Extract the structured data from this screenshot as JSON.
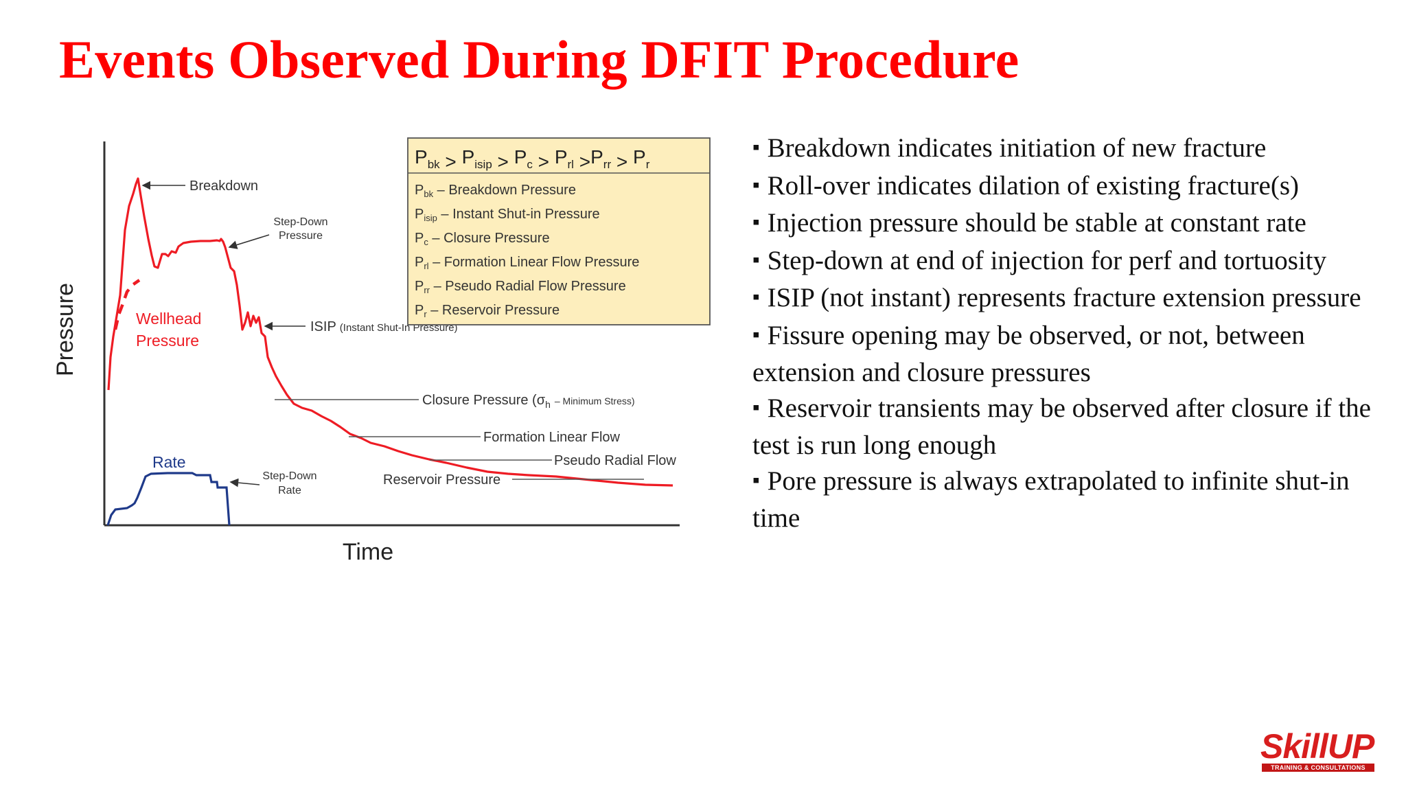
{
  "title": "Events Observed During DFIT Procedure",
  "diagram": {
    "axis_y_label": "Pressure",
    "axis_x_label": "Time",
    "labels": {
      "breakdown": "Breakdown",
      "wellhead_1": "Wellhead",
      "wellhead_2": "Pressure",
      "step_down_pressure_1": "Step-Down",
      "step_down_pressure_2": "Pressure",
      "isip_main": "ISIP",
      "isip_detail": "(Instant Shut-In Pressure)",
      "closure_main": "Closure Pressure (σ",
      "closure_sub": "h",
      "closure_detail": "– Minimum Stress)",
      "formation_linear_flow": "Formation Linear Flow",
      "pseudo_radial_flow": "Pseudo Radial Flow",
      "reservoir_pressure": "Reservoir Pressure",
      "rate": "Rate",
      "step_down_rate_1": "Step-Down",
      "step_down_rate_2": "Rate"
    },
    "legend": {
      "header": [
        {
          "p": "P",
          "sub": "bk",
          "op": " > "
        },
        {
          "p": "P",
          "sub": "isip",
          "op": " > "
        },
        {
          "p": "P",
          "sub": "c",
          "op": " > "
        },
        {
          "p": "P",
          "sub": "rl",
          "op": " >"
        },
        {
          "p": "P",
          "sub": "rr",
          "op": " > "
        },
        {
          "p": "P",
          "sub": "r",
          "op": ""
        }
      ],
      "items": [
        {
          "p": "P",
          "sub": "bk",
          "text": " – Breakdown Pressure"
        },
        {
          "p": "P",
          "sub": "isip",
          "text": " – Instant Shut-in Pressure"
        },
        {
          "p": "P",
          "sub": "c",
          "text": " – Closure Pressure"
        },
        {
          "p": "P",
          "sub": "rl",
          "text": " – Formation Linear Flow Pressure"
        },
        {
          "p": "P",
          "sub": "rr",
          "text": " – Pseudo Radial Flow Pressure"
        },
        {
          "p": "P",
          "sub": "r",
          "text": " – Reservoir Pressure"
        }
      ]
    },
    "colors": {
      "pressure_curve": "#ee1c24",
      "rate_curve": "#1f3a8a",
      "legend_bg": "#fdeebd"
    }
  },
  "bullets": [
    {
      "mark": "▪",
      "text": "Breakdown indicates initiation of new fracture"
    },
    {
      "mark": "▪",
      "text": "Roll-over indicates dilation of existing fracture(s)"
    },
    {
      "mark": "▪",
      "text": "Injection pressure should be stable at constant rate"
    },
    {
      "mark": "▪",
      "text": "Step-down at end of injection for perf and tortuosity"
    },
    {
      "mark": "▪",
      "text": "ISIP (not instant) represents fracture extension pressure"
    },
    {
      "mark": "▪",
      "text": "Fissure opening may be observed, or not, between extension and closure pressures"
    },
    {
      "mark": "▪",
      "text": "Reservoir transients may be observed after closure if the test is run long enough"
    },
    {
      "mark": "▪",
      "text": "Pore pressure is always extrapolated to infinite shut-in time"
    }
  ],
  "logo": {
    "word": "SkillUP",
    "sub": "TRAINING & CONSULTATIONS"
  }
}
